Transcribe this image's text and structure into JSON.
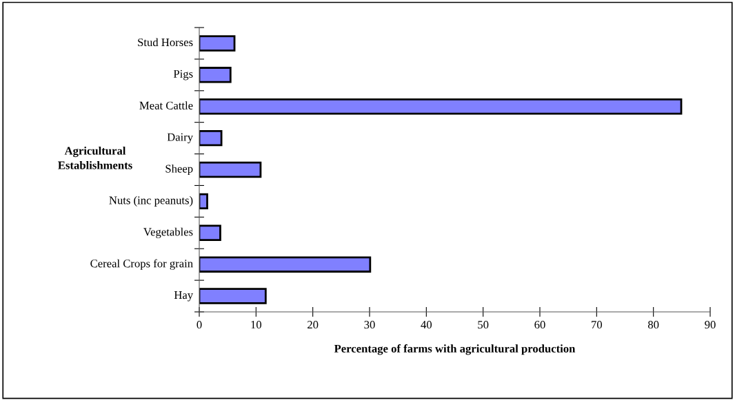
{
  "chart_data": {
    "type": "bar",
    "orientation": "horizontal",
    "ylabel": "Agricultural\nEstablishments",
    "xlabel": "Percentage of farms with agricultural production",
    "categories": [
      "Stud Horses",
      "Pigs",
      "Meat Cattle",
      "Dairy",
      "Sheep",
      "Nuts (inc peanuts)",
      "Vegetables",
      "Cereal Crops for grain",
      "Hay"
    ],
    "values": [
      6.2,
      5.5,
      84.9,
      3.9,
      10.8,
      1.4,
      3.7,
      30.1,
      11.7
    ],
    "color": "#8080ff",
    "xlim": [
      0,
      90
    ],
    "xticks": [
      0,
      10,
      20,
      30,
      40,
      50,
      60,
      70,
      80,
      90
    ],
    "grid": false,
    "legend": false
  }
}
